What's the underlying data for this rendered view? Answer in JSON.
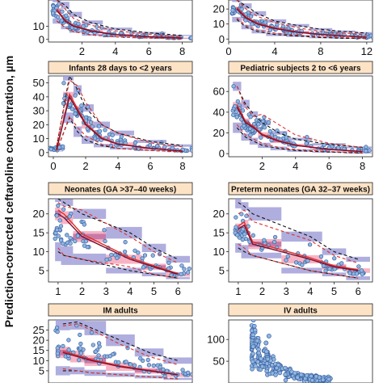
{
  "figure": {
    "ylabel": "Prediction-corrected ceftaroline concentration, µm"
  },
  "chart_data": [
    {
      "type": "vpc",
      "title": "",
      "xlim": [
        0,
        8.6
      ],
      "ylim": [
        -2,
        30
      ],
      "xticks": [
        2,
        4,
        6,
        8
      ],
      "yticks": [
        0,
        10
      ],
      "x": [
        0.5,
        1.0,
        1.5,
        2.5,
        4.0,
        6.0,
        8.0
      ],
      "median_obs": [
        22,
        14,
        10,
        6.5,
        3.5,
        2.0,
        1.0
      ],
      "lower_obs": [
        14,
        9,
        6,
        3.5,
        2.0,
        1.0,
        0.5
      ],
      "upper_obs": [
        30,
        23,
        16,
        11,
        6.5,
        4.0,
        2.0
      ],
      "lower_pred": [
        14,
        9,
        6,
        3.5,
        2.0,
        1.0,
        0.5
      ],
      "upper_pred": [
        30,
        26,
        19,
        13,
        8.0,
        5.0,
        3.0
      ]
    },
    {
      "type": "vpc",
      "title": "",
      "xlim": [
        0,
        12.5
      ],
      "ylim": [
        -2,
        26
      ],
      "xticks": [
        0,
        4,
        8,
        12
      ],
      "yticks": [
        0,
        10,
        20
      ],
      "x": [
        0.7,
        1.5,
        2.5,
        4.0,
        6.0,
        8.0,
        10.0,
        12.0
      ],
      "median_obs": [
        20,
        14,
        10,
        7,
        4.5,
        3.0,
        2.0,
        1.2
      ],
      "lower_obs": [
        14,
        9,
        6,
        4,
        2.5,
        1.5,
        1.0,
        0.5
      ],
      "upper_obs": [
        26,
        20,
        15,
        11,
        7.5,
        5.0,
        4.0,
        3.0
      ],
      "lower_pred": [
        13,
        8,
        5,
        3,
        2.0,
        1.0,
        0.5,
        0.3
      ],
      "upper_pred": [
        26,
        22,
        17,
        12,
        9.0,
        6.5,
        5.0,
        4.0
      ]
    },
    {
      "type": "vpc",
      "title": "Infants 28 days to <2 years",
      "xlim": [
        -0.3,
        8.6
      ],
      "ylim": [
        -3,
        55
      ],
      "xticks": [
        0,
        2,
        4,
        6,
        8
      ],
      "yticks": [
        0,
        10,
        20,
        30,
        40,
        50
      ],
      "x": [
        0.2,
        1.0,
        1.5,
        2.0,
        3.0,
        4.0,
        6.0,
        8.0
      ],
      "median_obs": [
        2,
        40,
        30,
        20,
        10,
        6,
        3,
        1
      ],
      "lower_obs": [
        1,
        26,
        18,
        12,
        6,
        3,
        1.5,
        0.5
      ],
      "upper_obs": [
        5,
        52,
        48,
        36,
        20,
        14,
        7,
        4
      ],
      "lower_pred": [
        1,
        25,
        15,
        9,
        5,
        3,
        1.5,
        0.5
      ],
      "upper_pred": [
        4,
        55,
        45,
        32,
        20,
        14,
        8,
        5
      ]
    },
    {
      "type": "vpc",
      "title": "Pediatric subjects 2 to <6 years",
      "xlim": [
        0,
        8.6
      ],
      "ylim": [
        -3,
        75
      ],
      "xticks": [
        2,
        4,
        6,
        8
      ],
      "yticks": [
        0,
        20,
        40,
        60
      ],
      "x": [
        0.5,
        1.0,
        1.5,
        2.0,
        3.0,
        4.0,
        6.0,
        8.0
      ],
      "median_obs": [
        45,
        30,
        25,
        18,
        12,
        8,
        4,
        2
      ],
      "lower_obs": [
        28,
        18,
        14,
        10,
        6,
        4,
        2,
        1
      ],
      "upper_obs": [
        65,
        45,
        36,
        38,
        28,
        18,
        10,
        6
      ],
      "lower_pred": [
        25,
        16,
        12,
        8,
        5,
        3,
        1.5,
        0.5
      ],
      "upper_pred": [
        65,
        48,
        38,
        30,
        20,
        14,
        9,
        6
      ]
    },
    {
      "type": "vpc",
      "title": "Neonates (GA >37–40 weeks)",
      "xlim": [
        0.6,
        6.6
      ],
      "ylim": [
        2,
        24
      ],
      "xticks": [
        1,
        2,
        3,
        4,
        5,
        6
      ],
      "yticks": [
        5,
        10,
        15,
        20
      ],
      "x": [
        1.0,
        1.25,
        2.0,
        4.0,
        5.0,
        6.0
      ],
      "median_obs": [
        20,
        19,
        14,
        8,
        6,
        4
      ],
      "lower_obs": [
        11,
        9,
        8,
        6,
        4,
        3
      ],
      "upper_obs": [
        23,
        22,
        21,
        14,
        10,
        7
      ],
      "lower_pred": [
        10,
        9,
        8,
        5,
        4,
        3
      ],
      "upper_pred": [
        24,
        23,
        20,
        15,
        11,
        8
      ]
    },
    {
      "type": "vpc",
      "title": "Preterm neonates (GA 32–37 weeks)",
      "xlim": [
        0.6,
        6.6
      ],
      "ylim": [
        2,
        24
      ],
      "xticks": [
        1,
        2,
        3,
        4,
        5,
        6
      ],
      "yticks": [
        5,
        10,
        15,
        20
      ],
      "x": [
        1.0,
        1.25,
        1.6,
        4.0,
        5.0,
        6.0
      ],
      "median_obs": [
        16,
        17,
        12,
        8,
        6,
        5
      ],
      "lower_obs": [
        12,
        11,
        9,
        5,
        4,
        3
      ],
      "upper_obs": [
        20,
        21,
        18,
        13,
        9,
        7
      ],
      "lower_pred": [
        11,
        10,
        9,
        5,
        4,
        3
      ],
      "upper_pred": [
        23,
        22,
        20,
        14,
        10,
        8
      ]
    },
    {
      "type": "vpc",
      "title": "IM adults",
      "xlim": [
        0.5,
        5.5
      ],
      "ylim": [
        -1,
        30
      ],
      "xticks": [],
      "yticks": [
        5,
        10,
        15,
        20,
        25
      ],
      "x": [
        1.0,
        1.5,
        2.0,
        3.0,
        4.0,
        5.0
      ],
      "median_obs": [
        14,
        12,
        10,
        7,
        5,
        3
      ],
      "lower_obs": [
        6,
        5,
        4,
        3,
        2,
        1
      ],
      "upper_obs": [
        27,
        28,
        25,
        18,
        12,
        8
      ],
      "lower_pred": [
        5,
        5,
        4,
        3,
        2,
        1
      ],
      "upper_pred": [
        28,
        29,
        26,
        20,
        14,
        10
      ]
    },
    {
      "type": "scatter",
      "title": "IV adults",
      "xlim": [
        0,
        10
      ],
      "ylim": [
        0,
        145
      ],
      "xticks": [],
      "yticks": [
        50,
        100
      ]
    }
  ]
}
